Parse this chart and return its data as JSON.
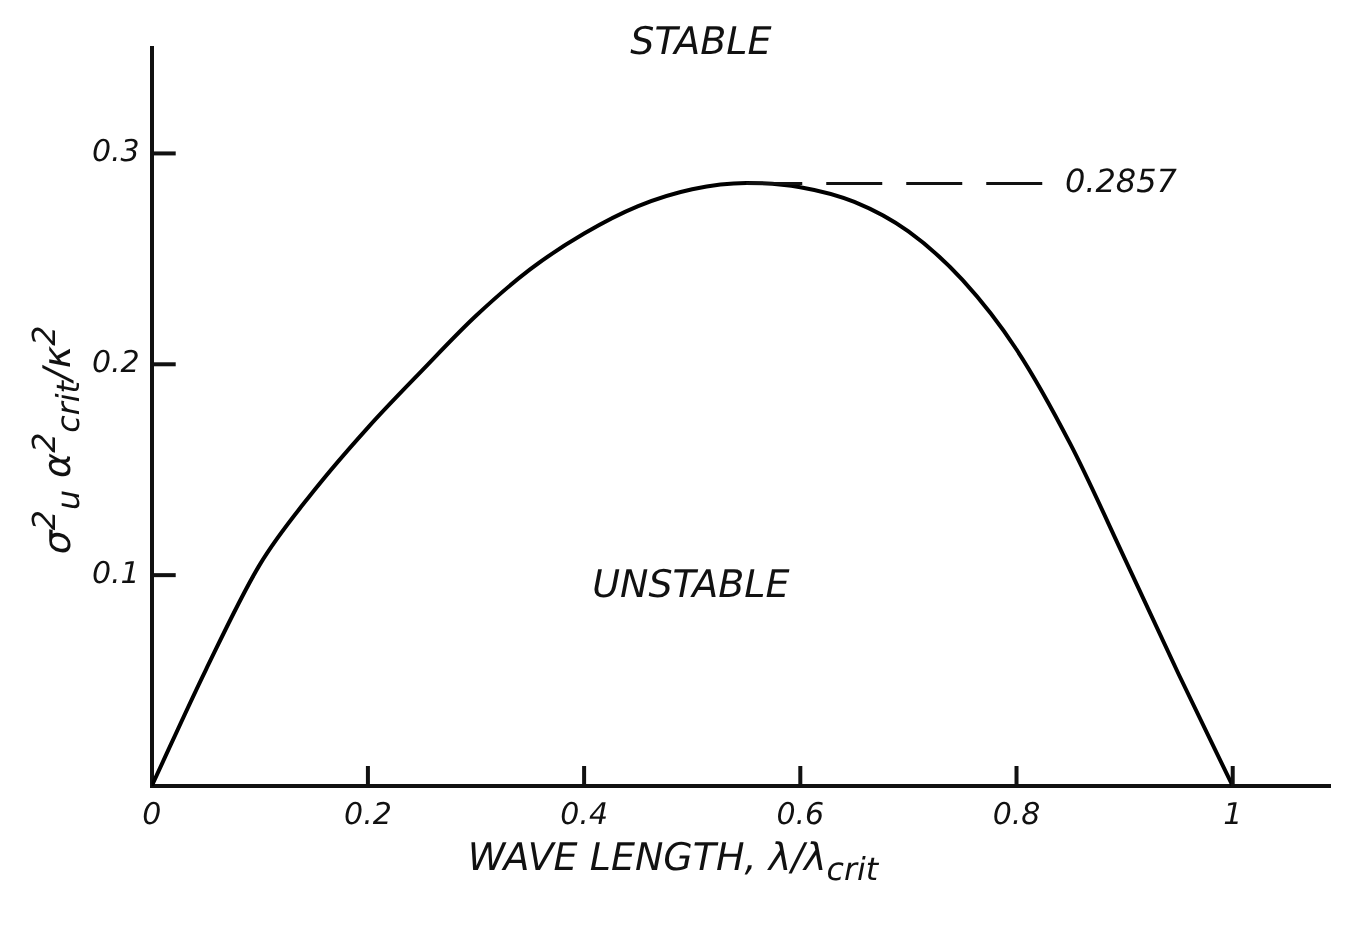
{
  "chart_data": {
    "type": "line",
    "xlabel": "WAVE LENGTH, λ/λ$_{crit}$",
    "ylabel": "σ$^{2}$$_{u}$ α$^{2}$$_{crit}$/κ$^{2}$",
    "x": [
      0,
      0.05,
      0.1,
      0.15,
      0.2,
      0.25,
      0.3,
      0.35,
      0.4,
      0.45,
      0.5,
      0.55,
      0.6,
      0.65,
      0.7,
      0.75,
      0.8,
      0.85,
      0.9,
      0.95,
      1
    ],
    "series": [
      {
        "color": "#000000",
        "values": [
          0,
          0.055,
          0.105,
          0.14,
          0.17,
          0.197,
          0.223,
          0.245,
          0.262,
          0.275,
          0.283,
          0.286,
          0.284,
          0.277,
          0.263,
          0.24,
          0.207,
          0.162,
          0.108,
          0.053,
          0
        ]
      }
    ],
    "xlim": [
      0,
      1.09
    ],
    "ylim": [
      0,
      0.35
    ],
    "xticks": [
      0,
      0.2,
      0.4,
      0.6,
      0.8,
      1
    ],
    "yticks": [
      0.1,
      0.2,
      0.3
    ],
    "annotations": [
      "STABLE",
      "UNSTABLE",
      {
        "text": "0.2857",
        "x": 0.55,
        "y": 0.2857
      }
    ],
    "grid": false,
    "legend": false,
    "marker": "none",
    "line_style": "solid"
  }
}
